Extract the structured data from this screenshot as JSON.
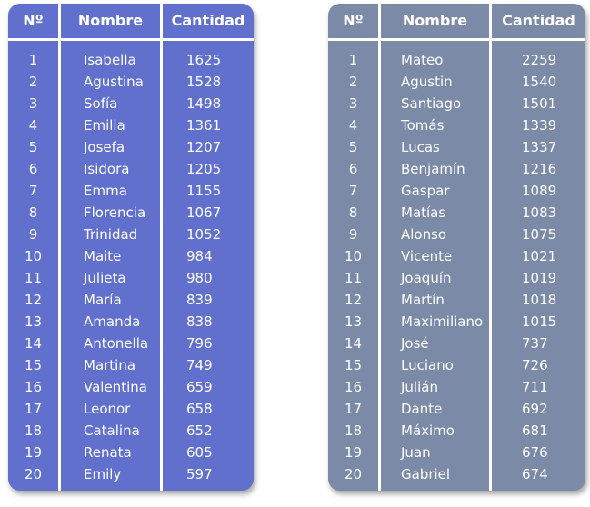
{
  "tables": [
    {
      "headers": {
        "num": "Nº",
        "name": "Nombre",
        "qty": "Cantidad"
      },
      "rows": [
        {
          "num": "1",
          "name": "Isabella",
          "qty": "1625"
        },
        {
          "num": "2",
          "name": "Agustina",
          "qty": "1528"
        },
        {
          "num": "3",
          "name": "Sofía",
          "qty": "1498"
        },
        {
          "num": "4",
          "name": "Emilia",
          "qty": "1361"
        },
        {
          "num": "5",
          "name": "Josefa",
          "qty": "1207"
        },
        {
          "num": "6",
          "name": "Isidora",
          "qty": "1205"
        },
        {
          "num": "7",
          "name": "Emma",
          "qty": "1155"
        },
        {
          "num": "8",
          "name": "Florencia",
          "qty": "1067"
        },
        {
          "num": "9",
          "name": "Trinidad",
          "qty": "1052"
        },
        {
          "num": "10",
          "name": "Maite",
          "qty": "984"
        },
        {
          "num": "11",
          "name": "Julieta",
          "qty": "980"
        },
        {
          "num": "12",
          "name": "María",
          "qty": "839"
        },
        {
          "num": "13",
          "name": "Amanda",
          "qty": "838"
        },
        {
          "num": "14",
          "name": "Antonella",
          "qty": "796"
        },
        {
          "num": "15",
          "name": "Martina",
          "qty": "749"
        },
        {
          "num": "16",
          "name": "Valentina",
          "qty": "659"
        },
        {
          "num": "17",
          "name": "Leonor",
          "qty": "658"
        },
        {
          "num": "18",
          "name": "Catalina",
          "qty": "652"
        },
        {
          "num": "19",
          "name": "Renata",
          "qty": "605"
        },
        {
          "num": "20",
          "name": "Emily",
          "qty": "597"
        }
      ]
    },
    {
      "headers": {
        "num": "Nº",
        "name": "Nombre",
        "qty": "Cantidad"
      },
      "rows": [
        {
          "num": "1",
          "name": "Mateo",
          "qty": "2259"
        },
        {
          "num": "2",
          "name": "Agustin",
          "qty": "1540"
        },
        {
          "num": "3",
          "name": "Santiago",
          "qty": "1501"
        },
        {
          "num": "4",
          "name": "Tomás",
          "qty": "1339"
        },
        {
          "num": "5",
          "name": "Lucas",
          "qty": "1337"
        },
        {
          "num": "6",
          "name": "Benjamín",
          "qty": "1216"
        },
        {
          "num": "7",
          "name": "Gaspar",
          "qty": "1089"
        },
        {
          "num": "8",
          "name": "Matías",
          "qty": "1083"
        },
        {
          "num": "9",
          "name": "Alonso",
          "qty": "1075"
        },
        {
          "num": "10",
          "name": "Vicente",
          "qty": "1021"
        },
        {
          "num": "11",
          "name": "Joaquín",
          "qty": "1019"
        },
        {
          "num": "12",
          "name": "Martín",
          "qty": "1018"
        },
        {
          "num": "13",
          "name": "Maximiliano",
          "qty": "1015"
        },
        {
          "num": "14",
          "name": "José",
          "qty": "737"
        },
        {
          "num": "15",
          "name": "Luciano",
          "qty": "726"
        },
        {
          "num": "16",
          "name": "Julián",
          "qty": "711"
        },
        {
          "num": "17",
          "name": "Dante",
          "qty": "692"
        },
        {
          "num": "18",
          "name": "Máximo",
          "qty": "681"
        },
        {
          "num": "19",
          "name": "Juan",
          "qty": "676"
        },
        {
          "num": "20",
          "name": "Gabriel",
          "qty": "674"
        }
      ]
    }
  ],
  "colors": {
    "girls_panel": "#6070cc",
    "boys_panel": "#7b8aa6",
    "text": "#ffffff"
  }
}
